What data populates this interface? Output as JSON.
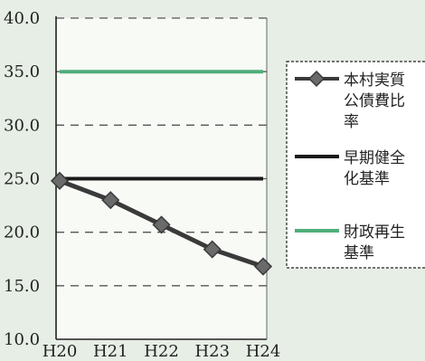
{
  "chart_data": {
    "type": "line",
    "categories": [
      "H20",
      "H21",
      "H22",
      "H23",
      "H24"
    ],
    "ylim": [
      10.0,
      40.0
    ],
    "yticks": [
      "10.0",
      "15.0",
      "20.0",
      "25.0",
      "30.0",
      "35.0",
      "40.0"
    ],
    "grid": "horizontal dashed",
    "legend_placement": "right",
    "colors": {
      "ratio": "#3a3a3a",
      "early": "#1a1a1a",
      "restore": "#4fae7a",
      "grid": "#555555"
    },
    "series": [
      {
        "key": "ratio",
        "name_lines": [
          "本村実質",
          "公債費比",
          "率"
        ],
        "marker": "diamond",
        "values": [
          24.8,
          23.0,
          20.7,
          18.4,
          16.8
        ]
      },
      {
        "key": "early",
        "name_lines": [
          "早期健全",
          "化基準"
        ],
        "marker": "none",
        "values": [
          25.0,
          25.0,
          25.0,
          25.0,
          25.0
        ]
      },
      {
        "key": "restore",
        "name_lines": [
          "財政再生",
          "基準"
        ],
        "marker": "none",
        "values": [
          35.0,
          35.0,
          35.0,
          35.0,
          35.0
        ]
      }
    ]
  }
}
